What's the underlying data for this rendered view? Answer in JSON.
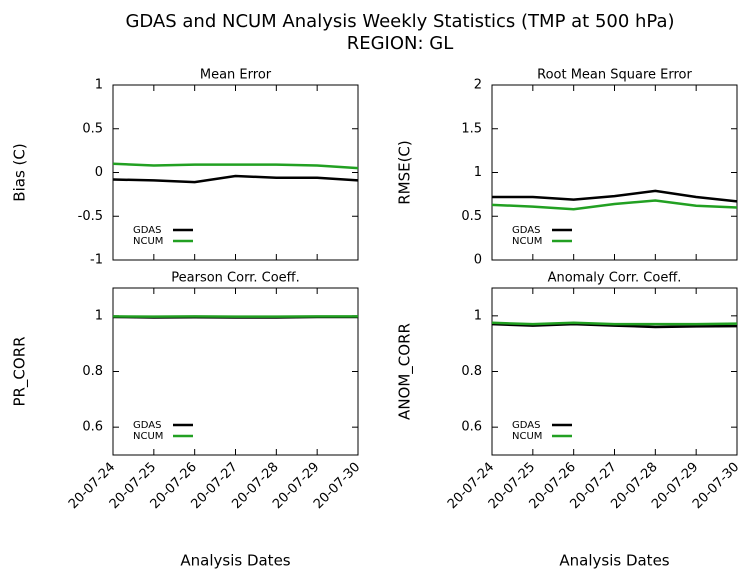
{
  "title": "GDAS and NCUM Analysis Weekly Statistics (TMP at 500 hPa)",
  "subtitle": "REGION: GL",
  "chart_data": [
    {
      "type": "line",
      "title": "Mean Error",
      "ylabel": "Bias (C)",
      "legend": "lower left",
      "ylim": [
        -1,
        1
      ],
      "yticks": [
        -1,
        -0.5,
        0,
        0.5,
        1
      ],
      "series": [
        {
          "name": "GDAS",
          "color": "#000000",
          "values": [
            -0.08,
            -0.09,
            -0.11,
            -0.04,
            -0.06,
            -0.06,
            -0.09
          ]
        },
        {
          "name": "NCUM",
          "color": "#22a022",
          "values": [
            0.1,
            0.08,
            0.09,
            0.09,
            0.09,
            0.08,
            0.05
          ]
        }
      ]
    },
    {
      "type": "line",
      "title": "Root Mean Square Error",
      "ylabel": "RMSE(C)",
      "legend": "lower left",
      "ylim": [
        0,
        2
      ],
      "yticks": [
        0,
        0.5,
        1,
        1.5,
        2
      ],
      "series": [
        {
          "name": "GDAS",
          "color": "#000000",
          "values": [
            0.72,
            0.72,
            0.69,
            0.73,
            0.79,
            0.72,
            0.67
          ]
        },
        {
          "name": "NCUM",
          "color": "#22a022",
          "values": [
            0.63,
            0.61,
            0.58,
            0.64,
            0.68,
            0.62,
            0.6
          ]
        }
      ]
    },
    {
      "type": "line",
      "title": "Pearson Corr. Coeff.",
      "ylabel": "PR_CORR",
      "xlabel": "Analysis Dates",
      "legend": "lower left",
      "categories": [
        "20-07-24",
        "20-07-25",
        "20-07-26",
        "20-07-27",
        "20-07-28",
        "20-07-29",
        "20-07-30"
      ],
      "ylim": [
        0.5,
        1.1
      ],
      "yticks": [
        0.6,
        0.8,
        1
      ],
      "series": [
        {
          "name": "GDAS",
          "color": "#000000",
          "values": [
            0.996,
            0.994,
            0.995,
            0.994,
            0.994,
            0.996,
            0.996
          ]
        },
        {
          "name": "NCUM",
          "color": "#22a022",
          "values": [
            0.998,
            0.997,
            0.998,
            0.997,
            0.997,
            0.998,
            0.998
          ]
        }
      ]
    },
    {
      "type": "line",
      "title": "Anomaly Corr. Coeff.",
      "ylabel": "ANOM_CORR",
      "xlabel": "Analysis Dates",
      "legend": "lower left",
      "categories": [
        "20-07-24",
        "20-07-25",
        "20-07-26",
        "20-07-27",
        "20-07-28",
        "20-07-29",
        "20-07-30"
      ],
      "ylim": [
        0.5,
        1.1
      ],
      "yticks": [
        0.6,
        0.8,
        1
      ],
      "series": [
        {
          "name": "GDAS",
          "color": "#000000",
          "values": [
            0.97,
            0.965,
            0.97,
            0.965,
            0.96,
            0.962,
            0.963
          ]
        },
        {
          "name": "NCUM",
          "color": "#22a022",
          "values": [
            0.975,
            0.97,
            0.975,
            0.97,
            0.97,
            0.97,
            0.972
          ]
        }
      ]
    }
  ]
}
